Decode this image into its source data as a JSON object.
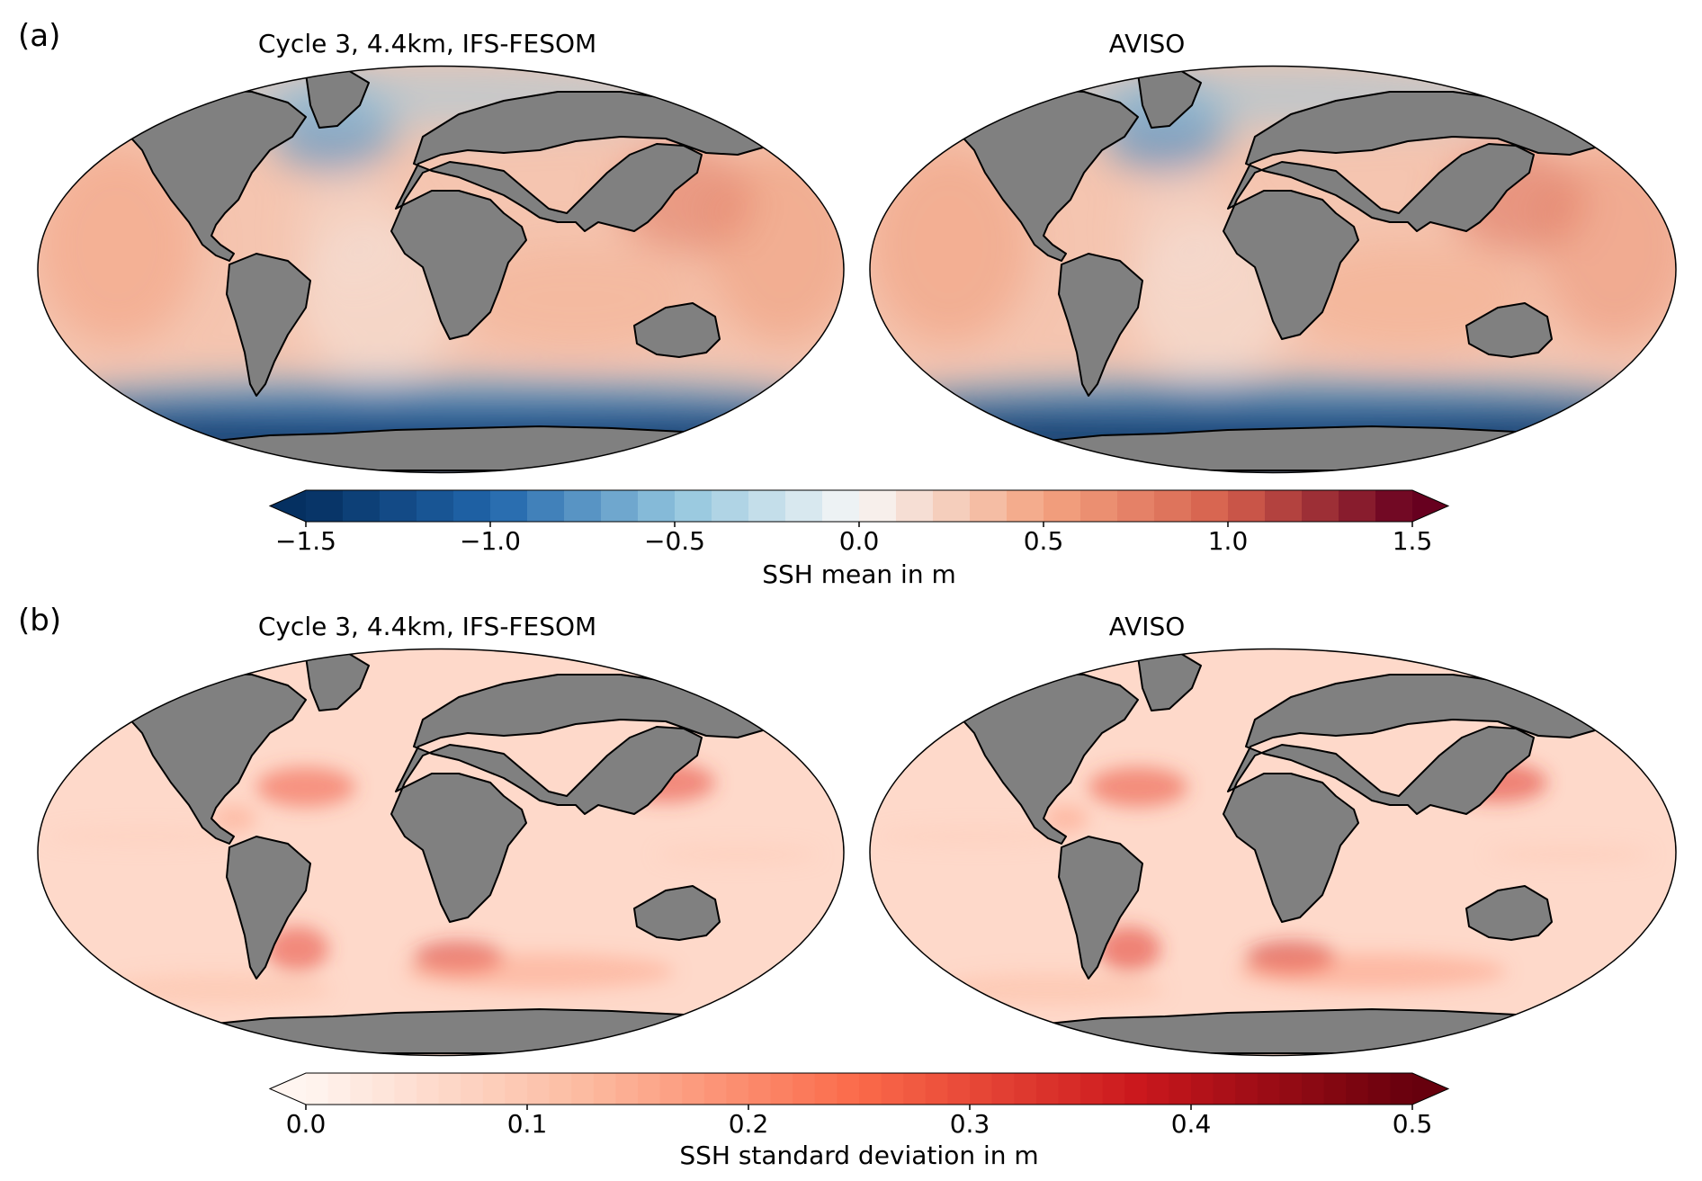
{
  "panels": [
    {
      "label": "(a)",
      "maps": [
        {
          "title": "Cycle 3, 4.4km, IFS-FESOM",
          "variant": "mean-model"
        },
        {
          "title": "AVISO",
          "variant": "mean-obs"
        }
      ],
      "colorbar": {
        "title": "SSH mean in m",
        "ticks": [
          "−1.5",
          "−1.0",
          "−0.5",
          "0.0",
          "0.5",
          "1.0",
          "1.5"
        ],
        "range": [
          -1.5,
          1.5
        ],
        "tick_values": [
          -1.5,
          -1.0,
          -0.5,
          0.0,
          0.5,
          1.0,
          1.5
        ],
        "colormap": "RdBu_r",
        "extend": "both"
      }
    },
    {
      "label": "(b)",
      "maps": [
        {
          "title": "Cycle 3, 4.4km, IFS-FESOM",
          "variant": "std-model"
        },
        {
          "title": "AVISO",
          "variant": "std-obs"
        }
      ],
      "colorbar": {
        "title": "SSH standard deviation in m",
        "ticks": [
          "0.0",
          "0.1",
          "0.2",
          "0.3",
          "0.4",
          "0.5"
        ],
        "range": [
          0.0,
          0.5
        ],
        "tick_values": [
          0.0,
          0.1,
          0.2,
          0.3,
          0.4,
          0.5
        ],
        "colormap": "Reds",
        "extend": "max"
      }
    }
  ],
  "colors": {
    "land": "#808080",
    "coastline": "#000000",
    "mean_deep_negative": "#053061",
    "mean_zero": "#f7f7f7",
    "mean_deep_positive": "#67001f",
    "std_low": "#fff5f0",
    "std_high": "#67000d"
  }
}
